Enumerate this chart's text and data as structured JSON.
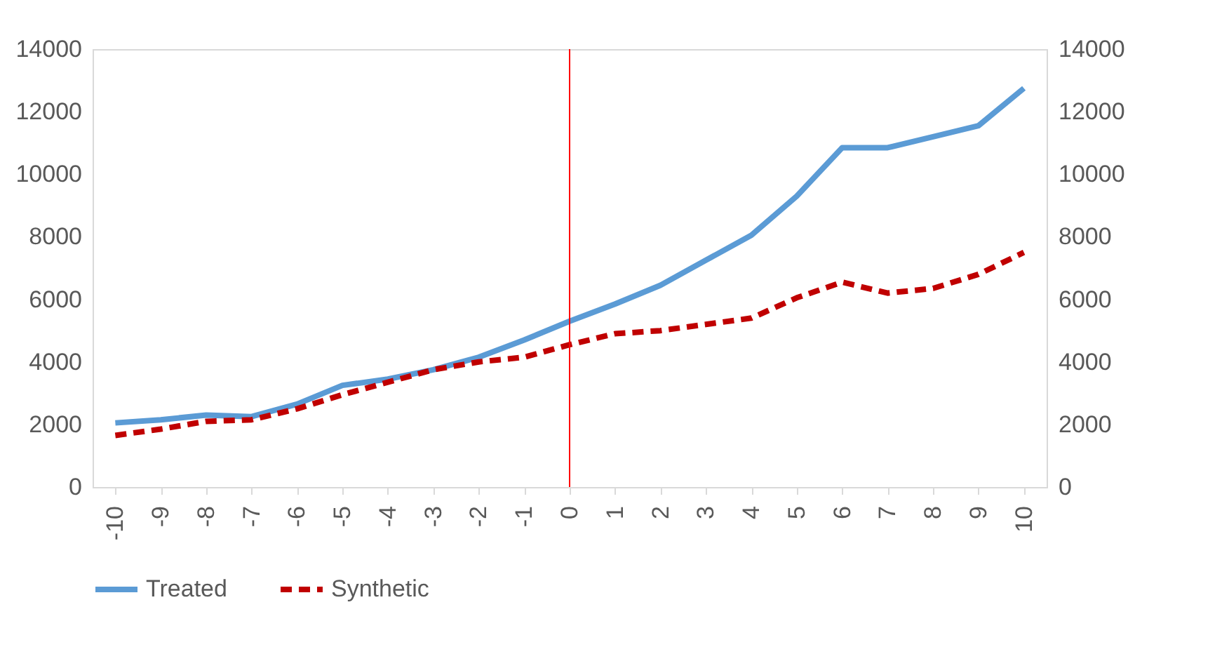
{
  "chart_data": {
    "type": "line",
    "categories": [
      "-10",
      "-9",
      "-8",
      "-7",
      "-6",
      "-5",
      "-4",
      "-3",
      "-2",
      "-1",
      "0",
      "1",
      "2",
      "3",
      "4",
      "5",
      "6",
      "7",
      "8",
      "9",
      "10"
    ],
    "series": [
      {
        "name": "Treated",
        "color": "#5b9bd5",
        "line_style": "solid",
        "values": [
          2050,
          2150,
          2300,
          2250,
          2650,
          3250,
          3450,
          3750,
          4150,
          4700,
          5300,
          5850,
          6450,
          7250,
          8050,
          9300,
          10850,
          10850,
          11200,
          11550,
          12750
        ]
      },
      {
        "name": "Synthetic",
        "color": "#c00000",
        "line_style": "dashed",
        "values": [
          1650,
          1850,
          2100,
          2150,
          2500,
          2950,
          3350,
          3750,
          4000,
          4150,
          4550,
          4900,
          5000,
          5200,
          5400,
          6050,
          6550,
          6200,
          6350,
          6800,
          7500
        ]
      }
    ],
    "ylim": [
      0,
      14000
    ],
    "yticks": [
      0,
      2000,
      4000,
      6000,
      8000,
      10000,
      12000,
      14000
    ],
    "y2lim": [
      0,
      14000
    ],
    "y2ticks": [
      0,
      2000,
      4000,
      6000,
      8000,
      10000,
      12000,
      14000
    ],
    "ref_lines": [
      {
        "axis": "x",
        "value": "0",
        "color": "#ff0000"
      }
    ],
    "grid": false,
    "legend": "bottom"
  }
}
